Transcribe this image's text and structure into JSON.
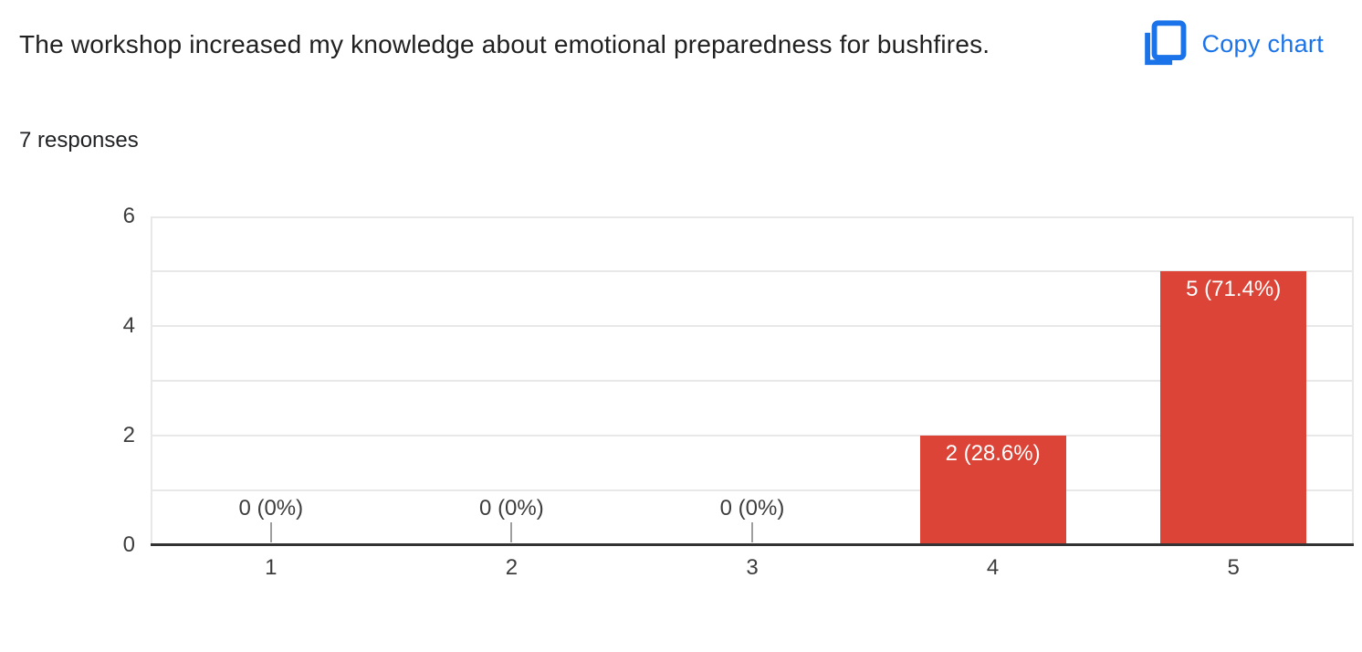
{
  "header": {
    "title": "The workshop increased my knowledge about emotional preparedness for bushfires.",
    "responses": "7 responses",
    "copy_chart_label": "Copy chart",
    "accent_blue": "#1a73e8"
  },
  "chart_data": {
    "type": "bar",
    "title": "The workshop increased my knowledge about emotional preparedness for bushfires.",
    "subtitle": "7 responses",
    "categories": [
      "1",
      "2",
      "3",
      "4",
      "5"
    ],
    "values": [
      0,
      0,
      0,
      2,
      5
    ],
    "value_labels": [
      "0 (0%)",
      "0 (0%)",
      "0 (0%)",
      "2 (28.6%)",
      "5 (71.4%)"
    ],
    "xlabel": "",
    "ylabel": "",
    "ylim": [
      0,
      6
    ],
    "yticks": [
      0,
      2,
      4,
      6
    ],
    "gridlines": [
      1,
      2,
      3,
      4,
      5,
      6
    ],
    "grid": true,
    "legend": "none",
    "bar_color": "#db4437",
    "bar_label_color": "#ffffff",
    "axis_label_color": "#3d3d3d",
    "gridline_color": "#e8e8e8",
    "baseline_color": "#333333"
  }
}
